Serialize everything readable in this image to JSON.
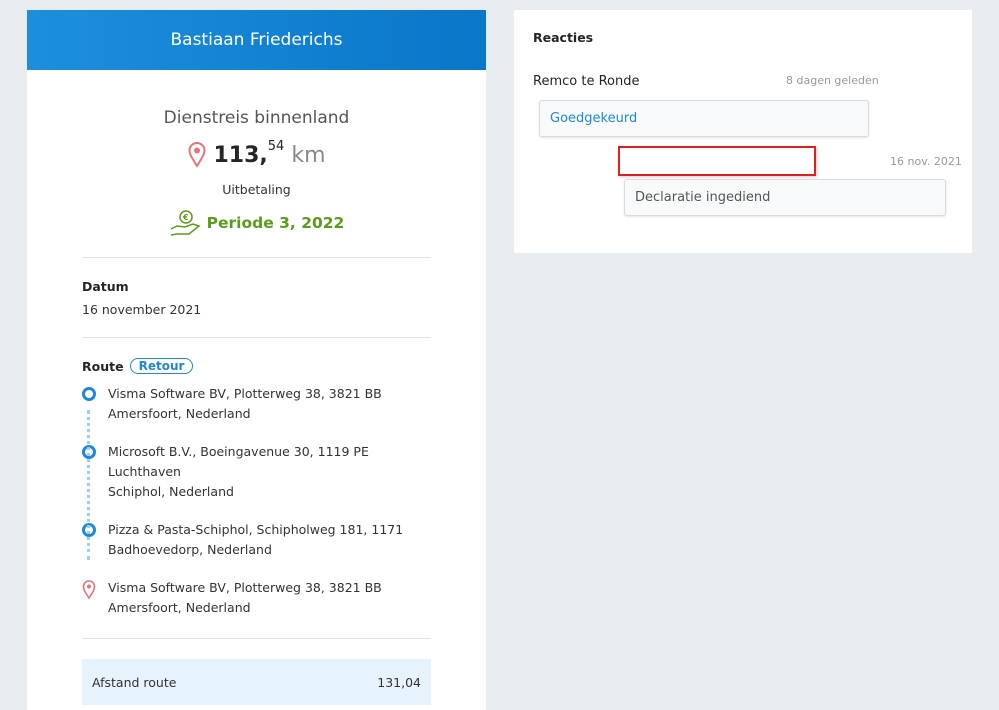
{
  "header": {
    "name": "Bastiaan Friederichs"
  },
  "trip": {
    "type": "Dienstreis binnenland",
    "km_int": "113,",
    "km_dec": "54",
    "km_unit": "km",
    "payout_label": "Uitbetaling",
    "period": "Periode 3, 2022"
  },
  "date": {
    "label": "Datum",
    "value": "16 november 2021"
  },
  "route": {
    "label": "Route",
    "badge": "Retour",
    "stops": [
      {
        "line1": "Visma Software BV, Plotterweg 38, 3821 BB",
        "line2": "Amersfoort, Nederland",
        "icon": "circle"
      },
      {
        "line1": "Microsoft B.V., Boeingavenue 30, 1119 PE Luchthaven",
        "line2": "Schiphol, Nederland",
        "icon": "circle"
      },
      {
        "line1": "Pizza & Pasta-Schiphol, Schipholweg 181, 1171",
        "line2": "Badhoevedorp, Nederland",
        "icon": "circle"
      },
      {
        "line1": "Visma Software BV, Plotterweg 38, 3821 BB",
        "line2": "Amersfoort, Nederland",
        "icon": "map-pin"
      }
    ]
  },
  "summary": {
    "label": "Afstand route",
    "value": "131,04"
  },
  "reactions": {
    "title": "Reacties",
    "items": [
      {
        "author": "Remco te Ronde",
        "time": "8 dagen geleden",
        "message": "Goedgekeurd"
      },
      {
        "author": "",
        "time": "16 nov. 2021",
        "message": "Declaratie ingediend"
      }
    ]
  },
  "colors": {
    "accent": "#1f88d8",
    "green": "#5a9d1a",
    "pin": "#e8737a",
    "highlight": "#e02020"
  }
}
